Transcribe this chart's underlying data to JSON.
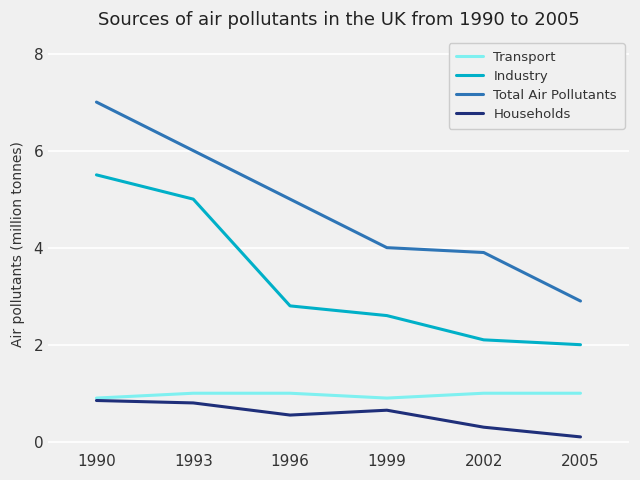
{
  "title": "Sources of air pollutants in the UK from 1990 to 2005",
  "xlabel": "",
  "ylabel": "Air pollutants (million tonnes)",
  "years": [
    1990,
    1993,
    1996,
    1999,
    2002,
    2005
  ],
  "series": {
    "Transport": {
      "values": [
        0.9,
        1.0,
        1.0,
        0.9,
        1.0,
        1.0
      ],
      "color": "#7ef0f0",
      "linewidth": 2.2
    },
    "Industry": {
      "values": [
        5.5,
        5.0,
        2.8,
        2.6,
        2.1,
        2.0
      ],
      "color": "#00b0c8",
      "linewidth": 2.2
    },
    "Total Air Pollutants": {
      "values": [
        7.0,
        6.0,
        5.0,
        4.0,
        3.9,
        2.9
      ],
      "color": "#2e75b6",
      "linewidth": 2.2
    },
    "Households": {
      "values": [
        0.85,
        0.8,
        0.55,
        0.65,
        0.3,
        0.1
      ],
      "color": "#1f2f7a",
      "linewidth": 2.2
    }
  },
  "ylim": [
    -0.15,
    8.3
  ],
  "yticks": [
    0,
    2,
    4,
    6,
    8
  ],
  "xticks": [
    1990,
    1993,
    1996,
    1999,
    2002,
    2005
  ],
  "legend_order": [
    "Transport",
    "Industry",
    "Total Air Pollutants",
    "Households"
  ],
  "background_color": "#f0f0f0",
  "plot_bg_color": "#f0f0f0",
  "grid_color": "#ffffff",
  "title_fontsize": 13,
  "label_fontsize": 10,
  "tick_fontsize": 11
}
